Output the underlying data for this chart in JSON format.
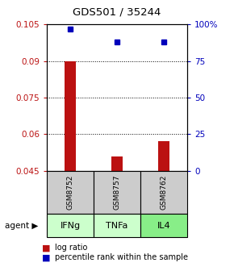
{
  "title": "GDS501 / 35244",
  "categories": [
    "IFNg",
    "TNFa",
    "IL4"
  ],
  "sample_ids": [
    "GSM8752",
    "GSM8757",
    "GSM8762"
  ],
  "bar_tops": [
    0.09,
    0.051,
    0.057
  ],
  "bar_base": 0.045,
  "percentile_values": [
    97,
    88,
    88
  ],
  "ylim_left": [
    0.045,
    0.105
  ],
  "ylim_right": [
    0,
    100
  ],
  "yticks_left": [
    0.045,
    0.06,
    0.075,
    0.09,
    0.105
  ],
  "yticks_right": [
    0,
    25,
    50,
    75,
    100
  ],
  "ytick_labels_right": [
    "0",
    "25",
    "50",
    "75",
    "100%"
  ],
  "bar_color": "#bb1111",
  "dot_color": "#0000bb",
  "agent_colors": [
    "#ccffcc",
    "#ccffcc",
    "#88ee88"
  ],
  "sample_box_color": "#cccccc",
  "legend_log_color": "#bb1111",
  "legend_pct_color": "#0000bb",
  "grid_yticks": [
    0.06,
    0.075,
    0.09
  ],
  "bar_width": 0.25,
  "dot_size": 5
}
